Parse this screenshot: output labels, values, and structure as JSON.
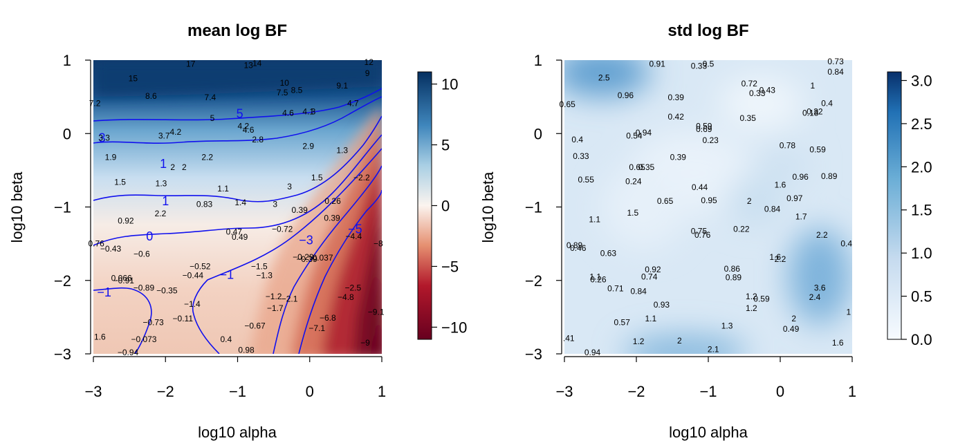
{
  "chart_data": [
    {
      "type": "heatmap",
      "title": "mean log BF",
      "xlabel": "log10 alpha",
      "ylabel": "log10 beta",
      "xlim": [
        -3,
        1
      ],
      "ylim": [
        -3,
        1
      ],
      "xticks": [
        "−3",
        "−2",
        "−1",
        "0",
        "1"
      ],
      "yticks": [
        "−3",
        "−2",
        "−1",
        "0",
        "1"
      ],
      "colorbar": {
        "min": -11,
        "max": 11,
        "ticks": [
          "−10",
          "−5",
          "0",
          "5",
          "10"
        ],
        "tick_values": [
          -10,
          -5,
          0,
          5,
          10
        ],
        "colors": {
          "low": "#67001f",
          "mid": "#fbf4ef",
          "high": "#053061"
        }
      },
      "contour_color": "#1010ee",
      "contour_labels": [
        {
          "x": -2.88,
          "y": -0.06,
          "text": "3"
        },
        {
          "x": -2.03,
          "y": -0.41,
          "text": "1"
        },
        {
          "x": -2.0,
          "y": -0.92,
          "text": "1"
        },
        {
          "x": -2.22,
          "y": -1.4,
          "text": "0"
        },
        {
          "x": -2.85,
          "y": -2.16,
          "text": "−1"
        },
        {
          "x": -1.15,
          "y": -1.92,
          "text": "−1"
        },
        {
          "x": -0.97,
          "y": 0.27,
          "text": "5"
        },
        {
          "x": -0.05,
          "y": -1.45,
          "text": "−3"
        },
        {
          "x": 0.63,
          "y": -1.3,
          "text": "−5"
        }
      ],
      "points": [
        {
          "x": -1.65,
          "y": 0.95,
          "label": "17"
        },
        {
          "x": -0.85,
          "y": 0.93,
          "label": "13"
        },
        {
          "x": -0.73,
          "y": 0.96,
          "label": "14"
        },
        {
          "x": -2.45,
          "y": 0.75,
          "label": "15"
        },
        {
          "x": -0.35,
          "y": 0.69,
          "label": "10"
        },
        {
          "x": 0.82,
          "y": 0.97,
          "label": "12"
        },
        {
          "x": 0.8,
          "y": 0.82,
          "label": "9"
        },
        {
          "x": 0.45,
          "y": 0.65,
          "label": "9.1"
        },
        {
          "x": -2.2,
          "y": 0.51,
          "label": "8.6"
        },
        {
          "x": -1.38,
          "y": 0.49,
          "label": "7.4"
        },
        {
          "x": -0.38,
          "y": 0.56,
          "label": "7.5"
        },
        {
          "x": -0.18,
          "y": 0.59,
          "label": "8.5"
        },
        {
          "x": -2.98,
          "y": 0.41,
          "label": "7.2"
        },
        {
          "x": 0.6,
          "y": 0.41,
          "label": "4.7"
        },
        {
          "x": -0.3,
          "y": 0.28,
          "label": "4.6"
        },
        {
          "x": -0.02,
          "y": 0.3,
          "label": "4.1"
        },
        {
          "x": 0.05,
          "y": 0.3,
          "label": "3"
        },
        {
          "x": -1.35,
          "y": 0.21,
          "label": "5"
        },
        {
          "x": -0.92,
          "y": 0.1,
          "label": "4.2"
        },
        {
          "x": -0.85,
          "y": 0.05,
          "label": "4.6"
        },
        {
          "x": -2.02,
          "y": -0.03,
          "label": "3.7"
        },
        {
          "x": -1.86,
          "y": 0.02,
          "label": "4.2"
        },
        {
          "x": -0.72,
          "y": -0.08,
          "label": "2.8"
        },
        {
          "x": -2.85,
          "y": -0.06,
          "label": "3.3"
        },
        {
          "x": -0.02,
          "y": -0.17,
          "label": "2.9"
        },
        {
          "x": 0.45,
          "y": -0.23,
          "label": "1.3"
        },
        {
          "x": -2.76,
          "y": -0.32,
          "label": "1.9"
        },
        {
          "x": -1.42,
          "y": -0.32,
          "label": "2.2"
        },
        {
          "x": -1.9,
          "y": -0.46,
          "label": "2"
        },
        {
          "x": -1.74,
          "y": -0.46,
          "label": "2"
        },
        {
          "x": -2.63,
          "y": -0.66,
          "label": "1.5"
        },
        {
          "x": -2.06,
          "y": -0.68,
          "label": "1.3"
        },
        {
          "x": -1.2,
          "y": -0.75,
          "label": "1.1"
        },
        {
          "x": -0.28,
          "y": -0.72,
          "label": "3"
        },
        {
          "x": 0.1,
          "y": -0.6,
          "label": "1.5"
        },
        {
          "x": 0.72,
          "y": -0.6,
          "label": "−2.2"
        },
        {
          "x": -1.46,
          "y": -0.96,
          "label": "0.83"
        },
        {
          "x": -0.96,
          "y": -0.94,
          "label": "1.4"
        },
        {
          "x": -0.48,
          "y": -0.96,
          "label": "3"
        },
        {
          "x": -0.14,
          "y": -1.04,
          "label": "0.39"
        },
        {
          "x": 0.32,
          "y": -0.92,
          "label": "0.26"
        },
        {
          "x": 0.31,
          "y": -1.15,
          "label": "0.39"
        },
        {
          "x": -2.55,
          "y": -1.19,
          "label": "0.92"
        },
        {
          "x": -2.07,
          "y": -1.09,
          "label": "2.2"
        },
        {
          "x": -1.05,
          "y": -1.34,
          "label": "0.47"
        },
        {
          "x": -0.97,
          "y": -1.41,
          "label": "0.49"
        },
        {
          "x": -0.38,
          "y": -1.3,
          "label": "−0.72"
        },
        {
          "x": 0.61,
          "y": -1.4,
          "label": "−4.4"
        },
        {
          "x": 0.95,
          "y": -1.5,
          "label": "−8"
        },
        {
          "x": -2.96,
          "y": -1.5,
          "label": "0.76"
        },
        {
          "x": -2.76,
          "y": -1.57,
          "label": "−0.43"
        },
        {
          "x": -2.33,
          "y": -1.64,
          "label": "−0.6"
        },
        {
          "x": -0.09,
          "y": -1.68,
          "label": "−0.29"
        },
        {
          "x": -0.04,
          "y": -1.71,
          "label": "−0.39"
        },
        {
          "x": 0.18,
          "y": -1.69,
          "label": "0.037"
        },
        {
          "x": -1.52,
          "y": -1.81,
          "label": "−0.52"
        },
        {
          "x": -1.62,
          "y": -1.93,
          "label": "−0.44"
        },
        {
          "x": -0.7,
          "y": -1.81,
          "label": "−1.5"
        },
        {
          "x": -0.63,
          "y": -1.93,
          "label": "−1.3"
        },
        {
          "x": -2.61,
          "y": -1.97,
          "label": "0.066"
        },
        {
          "x": -2.58,
          "y": -2.0,
          "label": "−0.91"
        },
        {
          "x": -2.3,
          "y": -2.1,
          "label": "−0.89"
        },
        {
          "x": -1.98,
          "y": -2.14,
          "label": "−0.35"
        },
        {
          "x": 0.6,
          "y": -2.1,
          "label": "−2.5"
        },
        {
          "x": 0.5,
          "y": -2.23,
          "label": "−4.8"
        },
        {
          "x": -0.5,
          "y": -2.22,
          "label": "−1.2"
        },
        {
          "x": -0.28,
          "y": -2.25,
          "label": "−2.1"
        },
        {
          "x": -1.63,
          "y": -2.32,
          "label": "−1.4"
        },
        {
          "x": -0.48,
          "y": -2.38,
          "label": "−1.7"
        },
        {
          "x": 0.92,
          "y": -2.43,
          "label": "−9.1"
        },
        {
          "x": -1.76,
          "y": -2.52,
          "label": "−0.11"
        },
        {
          "x": -2.17,
          "y": -2.57,
          "label": "−0.73"
        },
        {
          "x": 0.25,
          "y": -2.51,
          "label": "−6.8"
        },
        {
          "x": -0.76,
          "y": -2.62,
          "label": "−0.67"
        },
        {
          "x": 0.1,
          "y": -2.65,
          "label": "−7.1"
        },
        {
          "x": -2.91,
          "y": -2.77,
          "label": "1.6"
        },
        {
          "x": -2.3,
          "y": -2.8,
          "label": "−0.073"
        },
        {
          "x": -1.16,
          "y": -2.8,
          "label": "0.4"
        },
        {
          "x": 0.77,
          "y": -2.85,
          "label": "−9"
        },
        {
          "x": -2.52,
          "y": -2.98,
          "label": "−0.94"
        },
        {
          "x": -0.88,
          "y": -2.95,
          "label": "0.98"
        }
      ]
    },
    {
      "type": "heatmap",
      "title": "std log BF",
      "xlabel": "log10 alpha",
      "ylabel": "log10 beta",
      "xlim": [
        -3,
        1
      ],
      "ylim": [
        -3,
        1
      ],
      "xticks": [
        "−3",
        "−2",
        "−1",
        "0",
        "1"
      ],
      "yticks": [
        "−3",
        "−2",
        "−1",
        "0",
        "1"
      ],
      "colorbar": {
        "min": 0,
        "max": 3.1,
        "ticks": [
          "0.0",
          "0.5",
          "1.0",
          "1.5",
          "2.0",
          "2.5",
          "3.0"
        ],
        "tick_values": [
          0,
          0.5,
          1.0,
          1.5,
          2.0,
          2.5,
          3.0
        ],
        "colors": {
          "low": "#f7fbff",
          "high": "#08306b"
        }
      },
      "points": [
        {
          "x": -1.71,
          "y": 0.95,
          "label": "0.91"
        },
        {
          "x": -1.13,
          "y": 0.92,
          "label": "0.33"
        },
        {
          "x": -1.0,
          "y": 0.95,
          "label": "0.5"
        },
        {
          "x": 0.77,
          "y": 0.98,
          "label": "0.73"
        },
        {
          "x": 0.77,
          "y": 0.84,
          "label": "0.84"
        },
        {
          "x": -2.45,
          "y": 0.76,
          "label": "2.5"
        },
        {
          "x": -0.43,
          "y": 0.68,
          "label": "0.72"
        },
        {
          "x": 0.45,
          "y": 0.65,
          "label": "1"
        },
        {
          "x": -0.32,
          "y": 0.55,
          "label": "0.33"
        },
        {
          "x": -0.18,
          "y": 0.59,
          "label": "0.43"
        },
        {
          "x": -2.15,
          "y": 0.52,
          "label": "0.96"
        },
        {
          "x": -1.45,
          "y": 0.49,
          "label": "0.39"
        },
        {
          "x": 0.65,
          "y": 0.41,
          "label": "0.4"
        },
        {
          "x": -2.96,
          "y": 0.4,
          "label": "0.65"
        },
        {
          "x": 0.42,
          "y": 0.28,
          "label": "0.18"
        },
        {
          "x": 0.48,
          "y": 0.3,
          "label": "0.32"
        },
        {
          "x": -1.45,
          "y": 0.23,
          "label": "0.42"
        },
        {
          "x": -0.45,
          "y": 0.21,
          "label": "0.35"
        },
        {
          "x": -1.06,
          "y": 0.1,
          "label": "0.59"
        },
        {
          "x": -1.06,
          "y": 0.06,
          "label": "0.69"
        },
        {
          "x": -2.03,
          "y": -0.03,
          "label": "0.54"
        },
        {
          "x": -1.9,
          "y": 0.01,
          "label": "0.94"
        },
        {
          "x": -2.82,
          "y": -0.08,
          "label": "0.4"
        },
        {
          "x": -0.97,
          "y": -0.09,
          "label": "0.23"
        },
        {
          "x": 0.1,
          "y": -0.16,
          "label": "0.78"
        },
        {
          "x": 0.52,
          "y": -0.22,
          "label": "0.59"
        },
        {
          "x": -2.77,
          "y": -0.31,
          "label": "0.33"
        },
        {
          "x": -1.42,
          "y": -0.32,
          "label": "0.39"
        },
        {
          "x": -1.99,
          "y": -0.46,
          "label": "0.65"
        },
        {
          "x": -1.86,
          "y": -0.46,
          "label": "0.35"
        },
        {
          "x": -2.7,
          "y": -0.63,
          "label": "0.55"
        },
        {
          "x": -2.04,
          "y": -0.65,
          "label": "0.24"
        },
        {
          "x": 0.28,
          "y": -0.59,
          "label": "0.96"
        },
        {
          "x": 0.68,
          "y": -0.58,
          "label": "0.89"
        },
        {
          "x": -1.12,
          "y": -0.73,
          "label": "0.44"
        },
        {
          "x": 0.0,
          "y": -0.7,
          "label": "1.6"
        },
        {
          "x": -1.6,
          "y": -0.92,
          "label": "0.65"
        },
        {
          "x": -0.99,
          "y": -0.91,
          "label": "0.95"
        },
        {
          "x": -0.43,
          "y": -0.92,
          "label": "2"
        },
        {
          "x": 0.2,
          "y": -0.88,
          "label": "0.97"
        },
        {
          "x": -0.11,
          "y": -1.03,
          "label": "0.84"
        },
        {
          "x": -2.05,
          "y": -1.08,
          "label": "1.5"
        },
        {
          "x": 0.29,
          "y": -1.13,
          "label": "1.7"
        },
        {
          "x": -2.58,
          "y": -1.17,
          "label": "1.1"
        },
        {
          "x": -0.54,
          "y": -1.3,
          "label": "0.22"
        },
        {
          "x": -1.13,
          "y": -1.33,
          "label": "0.75"
        },
        {
          "x": -1.08,
          "y": -1.38,
          "label": "0.76"
        },
        {
          "x": 0.58,
          "y": -1.38,
          "label": "2.2"
        },
        {
          "x": 0.92,
          "y": -1.5,
          "label": "0.4"
        },
        {
          "x": -2.86,
          "y": -1.52,
          "label": "0.89"
        },
        {
          "x": -2.81,
          "y": -1.56,
          "label": "0.46"
        },
        {
          "x": -2.39,
          "y": -1.63,
          "label": "0.63"
        },
        {
          "x": -0.07,
          "y": -1.68,
          "label": "1.6"
        },
        {
          "x": 0.0,
          "y": -1.71,
          "label": "2.2"
        },
        {
          "x": -1.77,
          "y": -1.85,
          "label": "0.92"
        },
        {
          "x": -1.82,
          "y": -1.95,
          "label": "0.74"
        },
        {
          "x": -0.67,
          "y": -1.84,
          "label": "0.86"
        },
        {
          "x": -0.65,
          "y": -1.96,
          "label": "0.89"
        },
        {
          "x": -2.57,
          "y": -1.95,
          "label": "1.1"
        },
        {
          "x": -2.53,
          "y": -1.99,
          "label": "0.26"
        },
        {
          "x": -2.29,
          "y": -2.11,
          "label": "0.71"
        },
        {
          "x": -1.97,
          "y": -2.15,
          "label": "0.84"
        },
        {
          "x": 0.55,
          "y": -2.1,
          "label": "3.6"
        },
        {
          "x": 0.48,
          "y": -2.23,
          "label": "2.4"
        },
        {
          "x": -0.4,
          "y": -2.22,
          "label": "1.2"
        },
        {
          "x": -0.26,
          "y": -2.25,
          "label": "0.59"
        },
        {
          "x": -1.65,
          "y": -2.33,
          "label": "0.93"
        },
        {
          "x": -0.4,
          "y": -2.38,
          "label": "1.2"
        },
        {
          "x": 0.95,
          "y": -2.43,
          "label": "1"
        },
        {
          "x": -1.8,
          "y": -2.52,
          "label": "1.1"
        },
        {
          "x": -2.2,
          "y": -2.57,
          "label": "0.57"
        },
        {
          "x": 0.19,
          "y": -2.52,
          "label": "2"
        },
        {
          "x": -0.74,
          "y": -2.62,
          "label": "1.3"
        },
        {
          "x": 0.15,
          "y": -2.66,
          "label": "0.49"
        },
        {
          "x": -2.94,
          "y": -2.79,
          "label": ".41"
        },
        {
          "x": -1.97,
          "y": -2.83,
          "label": "1.2"
        },
        {
          "x": -1.4,
          "y": -2.82,
          "label": "2"
        },
        {
          "x": 0.8,
          "y": -2.85,
          "label": "1.6"
        },
        {
          "x": -0.93,
          "y": -2.94,
          "label": "2.1"
        },
        {
          "x": -2.61,
          "y": -2.98,
          "label": "0.94"
        }
      ]
    }
  ]
}
